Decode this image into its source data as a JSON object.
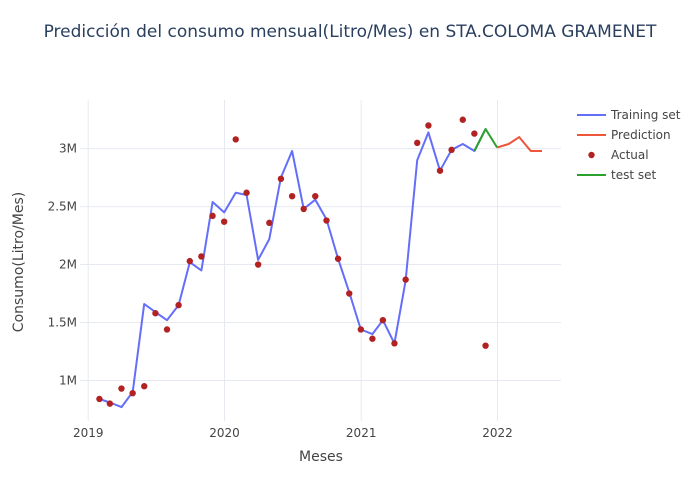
{
  "chart_data": {
    "type": "line",
    "title": "Predicción del consumo mensual(Litro/Mes) en STA.COLOMA GRAMENET",
    "xlabel": "Meses",
    "ylabel": "Consumo(Litro/Mes)",
    "x_ticks": [
      "2019",
      "2020",
      "2021",
      "2022"
    ],
    "y_ticks": [
      "1M",
      "1.5M",
      "2M",
      "2.5M",
      "3M"
    ],
    "y_tick_values": [
      1000000,
      1500000,
      2000000,
      2500000,
      3000000
    ],
    "xlim": [
      "2018-12-10",
      "2022-06-20"
    ],
    "ylim": [
      650000,
      3420000
    ],
    "grid": true,
    "legend_position": "top-right",
    "series": [
      {
        "name": "Training set",
        "mode": "line",
        "color": "#636efa",
        "x": [
          "2019-01-31",
          "2019-02-28",
          "2019-03-31",
          "2019-04-30",
          "2019-05-31",
          "2019-06-30",
          "2019-07-31",
          "2019-08-31",
          "2019-09-30",
          "2019-10-31",
          "2019-11-30",
          "2019-12-31",
          "2020-01-31",
          "2020-02-29",
          "2020-03-31",
          "2020-04-30",
          "2020-05-31",
          "2020-06-30",
          "2020-07-31",
          "2020-08-31",
          "2020-09-30",
          "2020-10-31",
          "2020-11-30",
          "2020-12-31",
          "2021-01-31",
          "2021-02-28",
          "2021-03-31",
          "2021-04-30",
          "2021-05-31",
          "2021-06-30",
          "2021-07-31",
          "2021-08-31",
          "2021-09-30",
          "2021-10-31",
          "2021-11-30"
        ],
        "y": [
          840000,
          810000,
          770000,
          900000,
          1660000,
          1590000,
          1520000,
          1650000,
          2020000,
          1950000,
          2540000,
          2450000,
          2620000,
          2600000,
          2040000,
          2220000,
          2750000,
          2980000,
          2480000,
          2560000,
          2390000,
          2050000,
          1760000,
          1440000,
          1400000,
          1520000,
          1320000,
          1860000,
          2900000,
          3140000,
          2810000,
          2990000,
          3040000,
          2980000,
          3170000
        ]
      },
      {
        "name": "Prediction",
        "mode": "line",
        "color": "#ef553b",
        "x": [
          "2021-12-31",
          "2022-01-31",
          "2022-02-28",
          "2022-03-31",
          "2022-04-30"
        ],
        "y": [
          3010000,
          3040000,
          3100000,
          2980000,
          2980000
        ]
      },
      {
        "name": "Actual",
        "mode": "markers",
        "color": "#b22222",
        "x": [
          "2019-01-31",
          "2019-02-28",
          "2019-03-31",
          "2019-04-30",
          "2019-05-31",
          "2019-06-30",
          "2019-07-31",
          "2019-08-31",
          "2019-09-30",
          "2019-10-31",
          "2019-11-30",
          "2019-12-31",
          "2020-01-31",
          "2020-02-29",
          "2020-03-31",
          "2020-04-30",
          "2020-05-31",
          "2020-06-30",
          "2020-07-31",
          "2020-08-31",
          "2020-09-30",
          "2020-10-31",
          "2020-11-30",
          "2020-12-31",
          "2021-01-31",
          "2021-02-28",
          "2021-03-31",
          "2021-04-30",
          "2021-05-31",
          "2021-06-30",
          "2021-07-31",
          "2021-08-31",
          "2021-09-30",
          "2021-10-31",
          "2021-11-30"
        ],
        "y": [
          840000,
          800000,
          930000,
          890000,
          950000,
          1580000,
          1440000,
          1650000,
          2030000,
          2070000,
          2420000,
          2370000,
          3080000,
          2620000,
          2000000,
          2360000,
          2740000,
          2590000,
          2480000,
          2590000,
          2380000,
          2050000,
          1750000,
          1440000,
          1360000,
          1520000,
          1320000,
          1870000,
          3050000,
          3200000,
          2810000,
          2990000,
          3250000,
          3130000,
          1300000
        ]
      },
      {
        "name": "test set",
        "mode": "line",
        "color": "#2ca02c",
        "x": [
          "2021-10-31",
          "2021-11-30",
          "2021-12-31"
        ],
        "y": [
          2980000,
          3170000,
          3010000
        ]
      }
    ]
  }
}
